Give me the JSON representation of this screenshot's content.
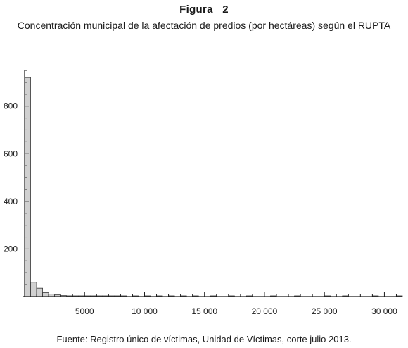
{
  "figure": {
    "label": "Figura   2",
    "title": "Concentración municipal de la afectación de predios (por hectáreas) según el RUPTA",
    "source": "Fuente: Registro único de víctimas, Unidad de Víctimas, corte julio 2013."
  },
  "chart_data": {
    "type": "bar",
    "title": "",
    "xlabel": "",
    "ylabel": "",
    "bin_width": 500,
    "xlim": [
      0,
      31500
    ],
    "ylim": [
      0,
      950
    ],
    "x_ticks": [
      {
        "value": 5000,
        "label": "5000"
      },
      {
        "value": 10000,
        "label": "10 000"
      },
      {
        "value": 15000,
        "label": "15 000"
      },
      {
        "value": 20000,
        "label": "20 000"
      },
      {
        "value": 25000,
        "label": "25 000"
      },
      {
        "value": 30000,
        "label": "30 000"
      }
    ],
    "y_ticks": [
      {
        "value": 200,
        "label": "200"
      },
      {
        "value": 400,
        "label": "400"
      },
      {
        "value": 600,
        "label": "600"
      },
      {
        "value": 800,
        "label": "800"
      }
    ],
    "bins": [
      {
        "x0": 0,
        "x1": 500,
        "count": 920
      },
      {
        "x0": 500,
        "x1": 1000,
        "count": 60
      },
      {
        "x0": 1000,
        "x1": 1500,
        "count": 35
      },
      {
        "x0": 1500,
        "x1": 2000,
        "count": 16
      },
      {
        "x0": 2000,
        "x1": 2500,
        "count": 10
      },
      {
        "x0": 2500,
        "x1": 3000,
        "count": 7
      },
      {
        "x0": 3000,
        "x1": 3500,
        "count": 4
      },
      {
        "x0": 3500,
        "x1": 4000,
        "count": 3
      },
      {
        "x0": 4000,
        "x1": 4500,
        "count": 2
      },
      {
        "x0": 4500,
        "x1": 5000,
        "count": 3
      },
      {
        "x0": 5000,
        "x1": 5500,
        "count": 2
      },
      {
        "x0": 5500,
        "x1": 6000,
        "count": 1
      },
      {
        "x0": 6000,
        "x1": 6500,
        "count": 1
      },
      {
        "x0": 6500,
        "x1": 7000,
        "count": 2
      },
      {
        "x0": 7000,
        "x1": 7500,
        "count": 2
      },
      {
        "x0": 7500,
        "x1": 8000,
        "count": 1
      },
      {
        "x0": 8000,
        "x1": 8500,
        "count": 1
      },
      {
        "x0": 9000,
        "x1": 9500,
        "count": 1
      },
      {
        "x0": 10000,
        "x1": 10500,
        "count": 2
      },
      {
        "x0": 11000,
        "x1": 11500,
        "count": 1
      },
      {
        "x0": 12000,
        "x1": 12500,
        "count": 1
      },
      {
        "x0": 13000,
        "x1": 13500,
        "count": 1
      },
      {
        "x0": 14000,
        "x1": 14500,
        "count": 2
      },
      {
        "x0": 15500,
        "x1": 16000,
        "count": 1
      },
      {
        "x0": 17000,
        "x1": 17500,
        "count": 1
      },
      {
        "x0": 18500,
        "x1": 19000,
        "count": 1
      },
      {
        "x0": 20500,
        "x1": 21000,
        "count": 1
      },
      {
        "x0": 22500,
        "x1": 23000,
        "count": 1
      },
      {
        "x0": 25000,
        "x1": 25500,
        "count": 1
      },
      {
        "x0": 26500,
        "x1": 27000,
        "count": 1
      },
      {
        "x0": 29000,
        "x1": 29500,
        "count": 1
      },
      {
        "x0": 31000,
        "x1": 31500,
        "count": 1
      }
    ],
    "grid": false,
    "legend": "none",
    "colors": {
      "bar_fill": "#d0d0d0",
      "bar_stroke": "#333333",
      "axis": "#1a1a1a"
    }
  }
}
